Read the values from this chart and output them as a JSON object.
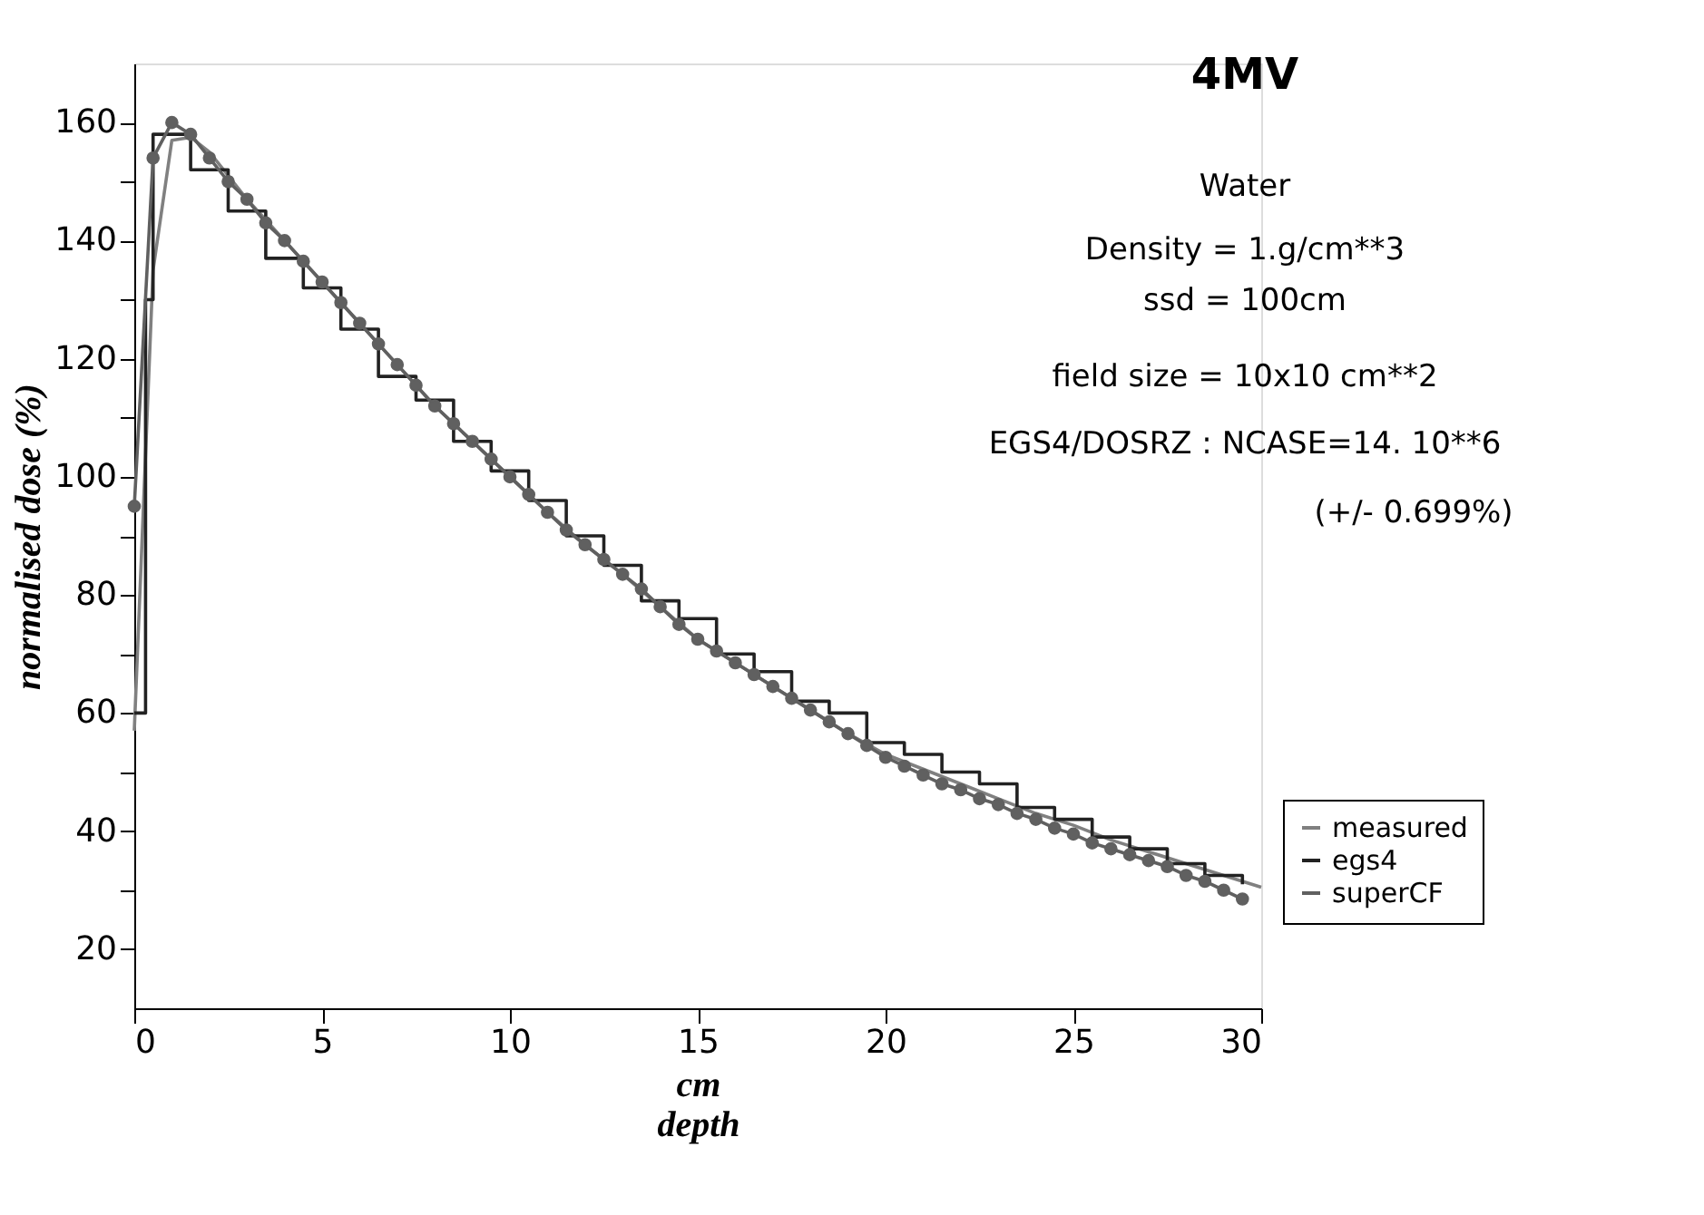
{
  "chart_data": {
    "type": "line",
    "xlabel": "cm\ndepth",
    "ylabel": "normalised dose (%)",
    "xlim": [
      0,
      30
    ],
    "ylim": [
      10,
      170
    ],
    "xticks": [
      0,
      5,
      10,
      15,
      20,
      25,
      30
    ],
    "yticks": [
      20,
      {
        "value": 30,
        "label": null
      },
      40,
      {
        "value": 50,
        "label": null
      },
      60,
      {
        "value": 70,
        "label": null
      },
      80,
      {
        "value": 90,
        "label": null
      },
      100,
      {
        "value": 110,
        "label": null
      },
      120,
      {
        "value": 130,
        "label": null
      },
      140,
      {
        "value": 150,
        "label": null
      },
      160
    ],
    "grid": false,
    "legend": "bottom right",
    "annotations": [
      "4MV",
      "Water",
      "Density = 1.g/cm**3",
      "ssd = 100cm",
      "field size = 10x10 cm**2",
      "EGS4/DOSRZ : NCASE=14. 10**6",
      "(+/- 0.699%)"
    ],
    "series": [
      {
        "name": "measured",
        "color": "#808080",
        "marker": "none",
        "x": [
          0,
          0.5,
          1,
          1.5,
          2,
          3,
          4,
          5,
          6,
          7,
          8,
          9,
          10,
          11,
          12,
          13,
          14,
          15,
          16,
          17,
          18,
          19,
          20,
          21,
          22,
          23,
          24,
          25,
          26,
          27,
          28,
          29,
          30
        ],
        "values": [
          57,
          135,
          157,
          157.5,
          155,
          147,
          140,
          133,
          126,
          119,
          112,
          106,
          100,
          94,
          88.5,
          83.5,
          78,
          72.5,
          68.5,
          64.5,
          60.5,
          56.5,
          53,
          50.5,
          48,
          45.5,
          43,
          41,
          38.5,
          36.5,
          34.5,
          32.5,
          30.5
        ]
      },
      {
        "name": "egs4",
        "type": "step",
        "color": "#222222",
        "marker": "none",
        "x": [
          0,
          0.3,
          0.5,
          1.5,
          2.5,
          3.5,
          4.5,
          5.5,
          6.5,
          7.5,
          8.5,
          9.5,
          10.5,
          11.5,
          12.5,
          13.5,
          14.5,
          15.5,
          16.5,
          17.5,
          18.5,
          19.5,
          20.5,
          21.5,
          22.5,
          23.5,
          24.5,
          25.5,
          26.5,
          27.5,
          28.5,
          29.5
        ],
        "values": [
          60,
          130,
          158,
          152,
          145,
          137,
          132,
          125,
          117,
          113,
          106,
          101,
          96,
          90,
          85,
          79,
          76,
          70,
          67,
          62,
          60,
          55,
          53,
          50,
          48,
          44,
          42,
          39,
          37,
          34.5,
          32.5,
          31
        ]
      },
      {
        "name": "superCF",
        "color": "#606060",
        "marker": "circle",
        "x": [
          0,
          0.5,
          1,
          1.5,
          2,
          2.5,
          3,
          3.5,
          4,
          4.5,
          5,
          5.5,
          6,
          6.5,
          7,
          7.5,
          8,
          8.5,
          9,
          9.5,
          10,
          10.5,
          11,
          11.5,
          12,
          12.5,
          13,
          13.5,
          14,
          14.5,
          15,
          15.5,
          16,
          16.5,
          17,
          17.5,
          18,
          18.5,
          19,
          19.5,
          20,
          20.5,
          21,
          21.5,
          22,
          22.5,
          23,
          23.5,
          24,
          24.5,
          25,
          25.5,
          26,
          26.5,
          27,
          27.5,
          28,
          28.5,
          29,
          29.5
        ],
        "values": [
          95,
          154,
          160,
          158,
          154,
          150,
          147,
          143,
          140,
          136.5,
          133,
          129.5,
          126,
          122.5,
          119,
          115.5,
          112,
          109,
          106,
          103,
          100,
          97,
          94,
          91,
          88.5,
          86,
          83.5,
          81,
          78,
          75,
          72.5,
          70.5,
          68.5,
          66.5,
          64.5,
          62.5,
          60.5,
          58.5,
          56.5,
          54.5,
          52.5,
          51,
          49.5,
          48,
          47,
          45.5,
          44.5,
          43,
          42,
          40.5,
          39.5,
          38,
          37,
          36,
          35,
          34,
          32.5,
          31.5,
          30,
          28.5
        ]
      }
    ]
  }
}
